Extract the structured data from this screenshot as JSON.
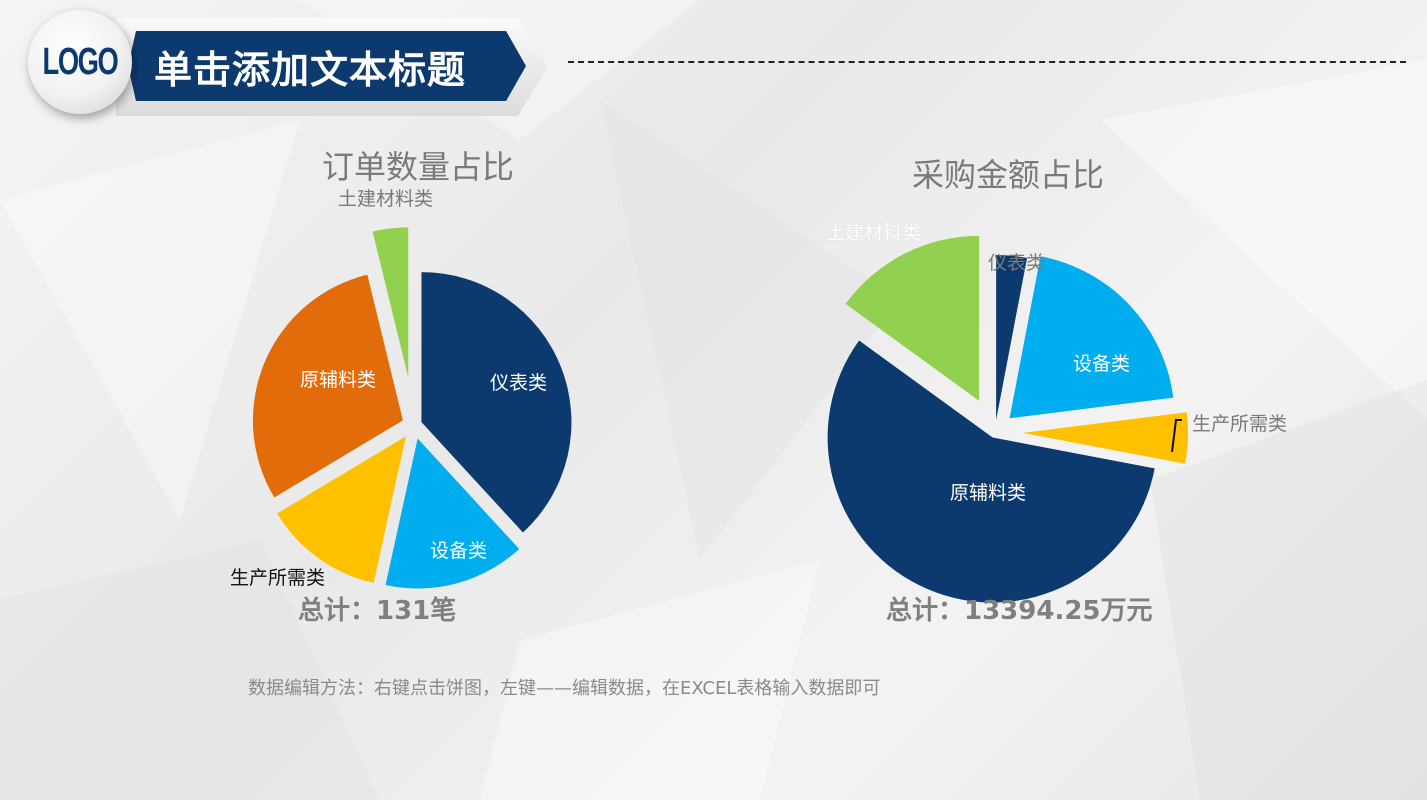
{
  "header": {
    "logo": "LOGO",
    "title": "单击添加文本标题"
  },
  "colors": {
    "navy": "#0d3a6e",
    "light_blue": "#00aeef",
    "yellow": "#ffc000",
    "orange": "#e36c0a",
    "green": "#92d050"
  },
  "chart_data": [
    {
      "type": "pie",
      "title": "订单数量占比",
      "categories": [
        "仪表类",
        "设备类",
        "生产所需类",
        "原辅料类",
        "土建材料类"
      ],
      "values": [
        50,
        20,
        17,
        39,
        5
      ],
      "colors": [
        "#0d3a6e",
        "#00aeef",
        "#ffc000",
        "#e36c0a",
        "#92d050"
      ],
      "unit": "笔",
      "total_label": "总计：131笔",
      "exploded": true
    },
    {
      "type": "pie",
      "title": "采购金额占比",
      "categories": [
        "仪表类",
        "设备类",
        "生产所需类",
        "原辅料类",
        "土建材料类"
      ],
      "values": [
        3,
        20,
        5,
        57,
        15
      ],
      "value_unit": "percent (estimated)",
      "colors": [
        "#0d3a6e",
        "#00aeef",
        "#ffc000",
        "#0d3a6e",
        "#92d050"
      ],
      "total_label": "总计：13394.25万元",
      "exploded": true
    }
  ],
  "left_chart": {
    "title": "订单数量占比",
    "labels": {
      "yibiao": "仪表类",
      "shebei": "设备类",
      "shengchan": "生产所需类",
      "yuanfu": "原辅料类",
      "tujian": "土建材料类"
    },
    "total": "总计：131笔"
  },
  "right_chart": {
    "title": "采购金额占比",
    "labels": {
      "yibiao": "仪表类",
      "shebei": "设备类",
      "shengchan": "生产所需类",
      "yuanfu": "原辅料类",
      "tujian": "土建材料类"
    },
    "total": "总计：13394.25万元"
  },
  "footer": {
    "note": "数据编辑方法：右键点击饼图，左键——编辑数据，在EXCEL表格输入数据即可"
  }
}
